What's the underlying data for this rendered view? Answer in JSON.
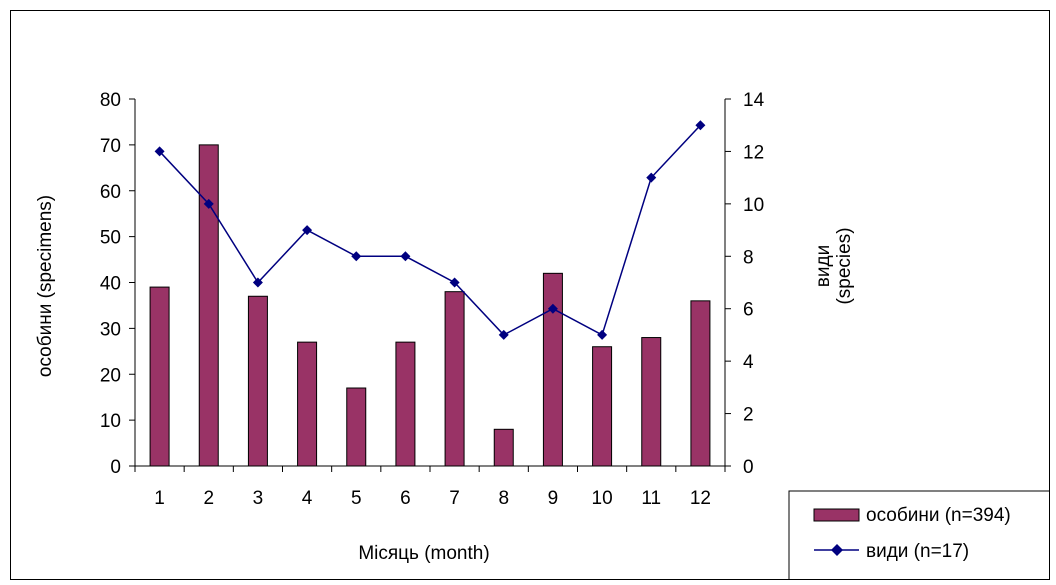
{
  "chart_data": {
    "type": "bar",
    "categories": [
      "1",
      "2",
      "3",
      "4",
      "5",
      "6",
      "7",
      "8",
      "9",
      "10",
      "11",
      "12"
    ],
    "series": [
      {
        "name": "особини (n=394)",
        "type": "bar",
        "axis": "left",
        "values": [
          39,
          70,
          37,
          27,
          17,
          27,
          38,
          8,
          42,
          26,
          28,
          36
        ]
      },
      {
        "name": "види (n=17)",
        "type": "line",
        "axis": "right",
        "values": [
          12,
          10,
          7,
          9,
          8,
          8,
          7,
          5,
          6,
          5,
          11,
          13
        ]
      }
    ],
    "xlabel": "Місяць (month)",
    "ylabel": "особини (specimens)",
    "y2label_line1": "види",
    "y2label_line2": "(species)",
    "ylim": [
      0,
      80
    ],
    "y2lim": [
      0,
      14
    ],
    "yticks": [
      "0",
      "10",
      "20",
      "30",
      "40",
      "50",
      "60",
      "70",
      "80"
    ],
    "y2ticks": [
      "0",
      "2",
      "4",
      "6",
      "8",
      "10",
      "12",
      "14"
    ],
    "grid": false,
    "legend_position": "bottom-right",
    "colors": {
      "bar": "#993366",
      "line": "#000080",
      "axis": "#000000"
    }
  }
}
